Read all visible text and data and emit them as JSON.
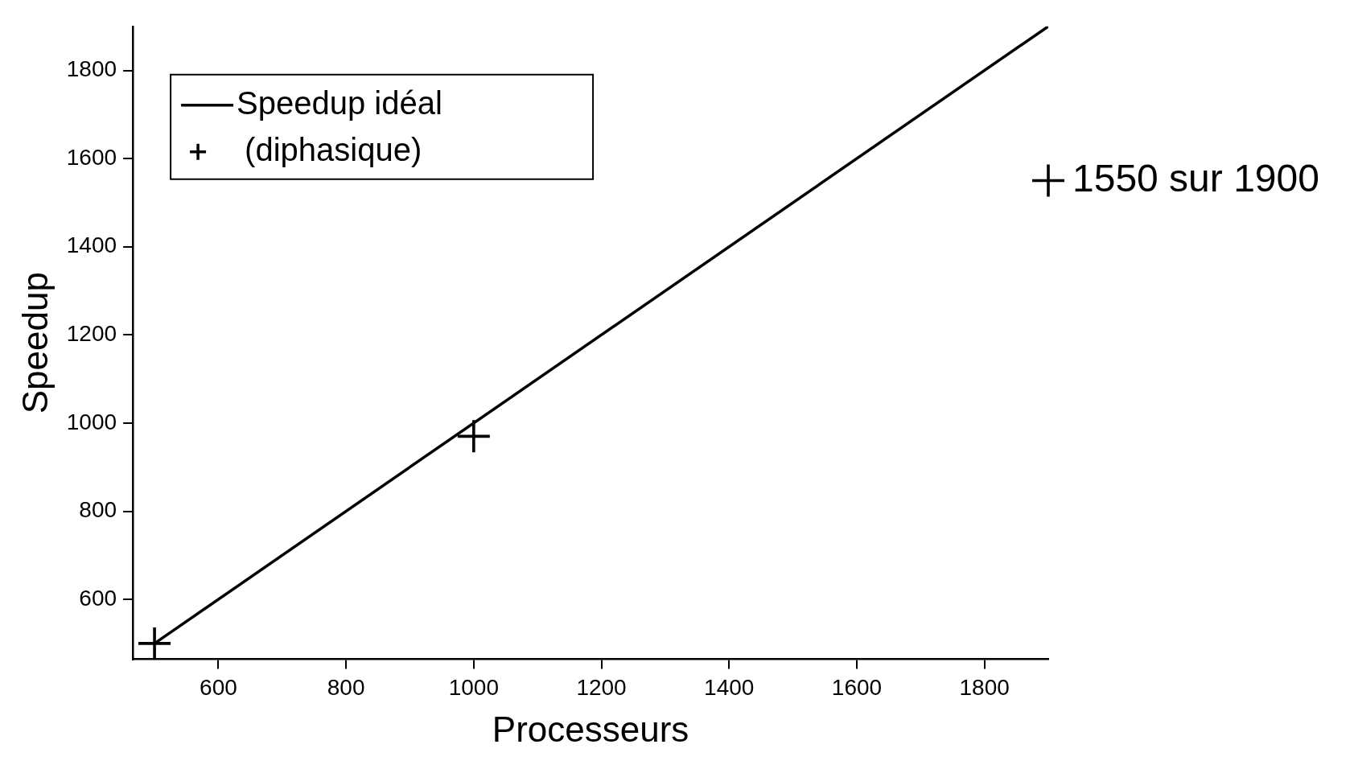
{
  "chart_data": {
    "type": "line",
    "xlabel": "Processeurs",
    "ylabel": "Speedup",
    "xlim": [
      466,
      1900
    ],
    "ylim": [
      464,
      1900
    ],
    "xticks": [
      600,
      800,
      1000,
      1200,
      1400,
      1600,
      1800
    ],
    "yticks": [
      600,
      800,
      1000,
      1200,
      1400,
      1600,
      1800
    ],
    "grid": false,
    "legend": "top left",
    "series": [
      {
        "name": "Speedup idéal",
        "type": "line",
        "color": "#000000",
        "x": [
          500,
          1900
        ],
        "values": [
          500,
          1900
        ],
        "marker": "none",
        "line_style": "solid"
      },
      {
        "name": "(diphasique)",
        "type": "scatter",
        "color": "#000000",
        "x": [
          500,
          1000,
          1900
        ],
        "values": [
          500,
          970,
          1550
        ],
        "marker": "cross"
      }
    ],
    "annotations": [
      {
        "text": "1550 sur 1900",
        "x": 1900,
        "y": 1550
      }
    ]
  }
}
